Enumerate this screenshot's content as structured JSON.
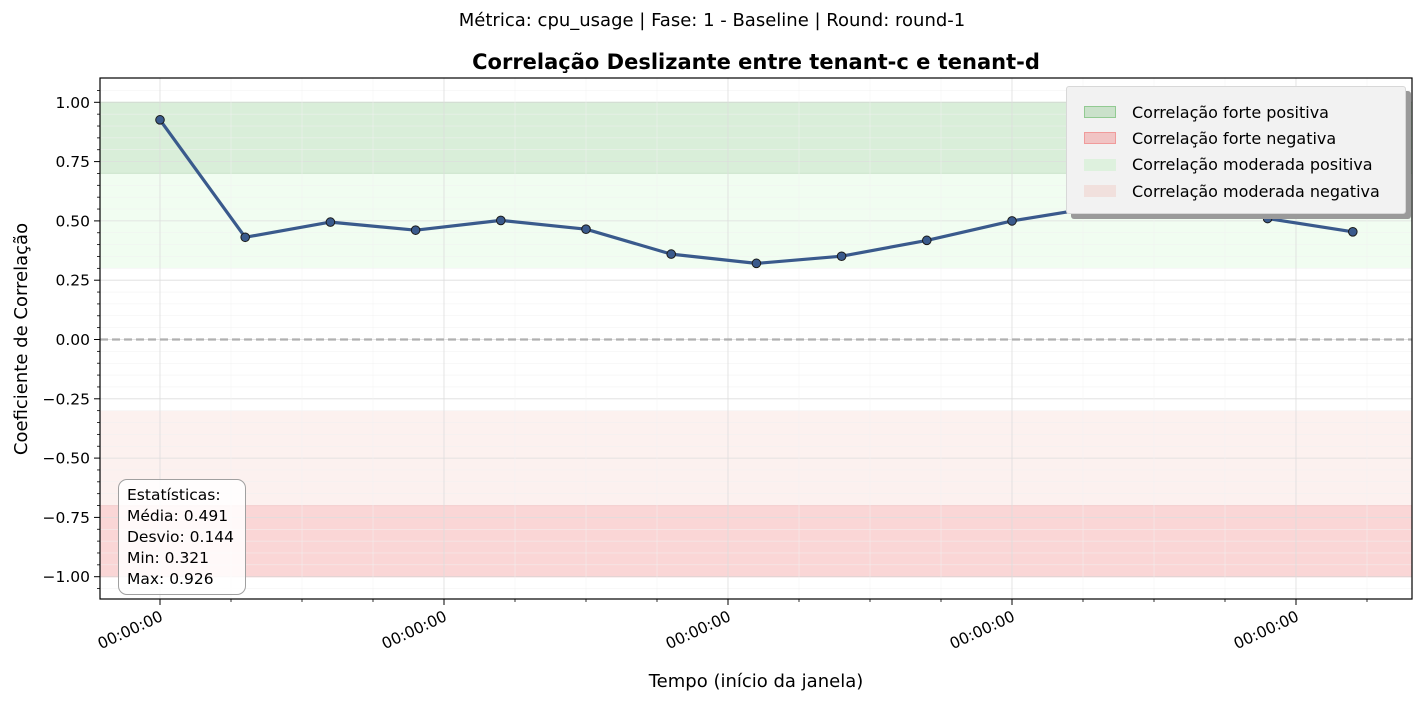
{
  "suptitle": "Métrica: cpu_usage | Fase: 1 - Baseline | Round: round-1",
  "chart_data": {
    "type": "line",
    "title": "Correlação Deslizante entre tenant-c e tenant-d",
    "xlabel": "Tempo (início da janela)",
    "ylabel": "Coeficiente de Correlação",
    "ylim": [
      -1.1,
      1.1
    ],
    "yticks": [
      "1.00",
      "0.75",
      "0.50",
      "0.25",
      "0.00",
      "−0.25",
      "−0.50",
      "−0.75",
      "−1.00"
    ],
    "xtick_labels": [
      "00:00:00",
      "00:00:00",
      "00:00:00",
      "00:00:00",
      "00:00:00"
    ],
    "x_index": [
      0,
      1,
      2,
      3,
      4,
      5,
      6,
      7,
      8,
      9,
      10,
      11,
      12,
      13,
      14
    ],
    "series": [
      {
        "values": [
          0.926,
          0.431,
          0.495,
          0.461,
          0.502,
          0.465,
          0.36,
          0.321,
          0.351,
          0.418,
          0.5,
          0.558,
          0.605,
          0.51,
          0.454
        ]
      }
    ],
    "bands": [
      {
        "label": "Correlação forte positiva",
        "from": 0.7,
        "to": 1.0,
        "color": "#2ca02c"
      },
      {
        "label": "Correlação forte negativa",
        "from": -1.0,
        "to": -0.7,
        "color": "#f08080"
      },
      {
        "label": "Correlação moderada positiva",
        "from": 0.3,
        "to": 0.7,
        "color": "#90ee90"
      },
      {
        "label": "Correlação moderada negativa",
        "from": -0.7,
        "to": -0.3,
        "color": "#f0c0b8"
      }
    ],
    "reference_line": 0,
    "line_color": "#3a5a8c",
    "grid": true,
    "legend_position": "top-right"
  },
  "stats": {
    "heading": "Estatísticas:",
    "media": "Média: 0.491",
    "desvio": "Desvio: 0.144",
    "min": "Min: 0.321",
    "max": "Max: 0.926"
  }
}
